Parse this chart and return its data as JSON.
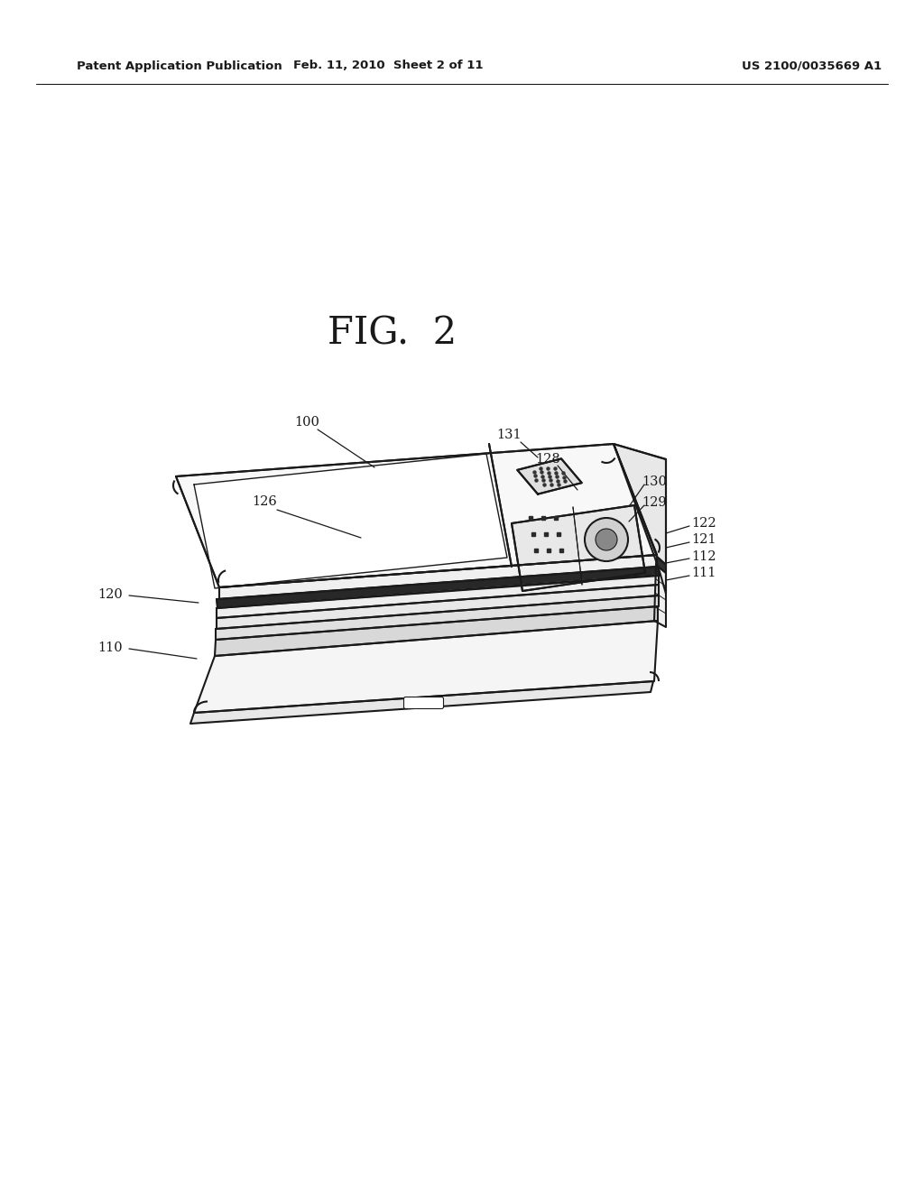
{
  "bg_color": "#ffffff",
  "header_left": "Patent Application Publication",
  "header_mid": "Feb. 11, 2010  Sheet 2 of 11",
  "header_right": "US 2100/0035669 A1",
  "fig_label": "FIG.  2",
  "line_color": "#1a1a1a",
  "text_color": "#1a1a1a",
  "line_width": 1.5,
  "font_size": 10.5
}
